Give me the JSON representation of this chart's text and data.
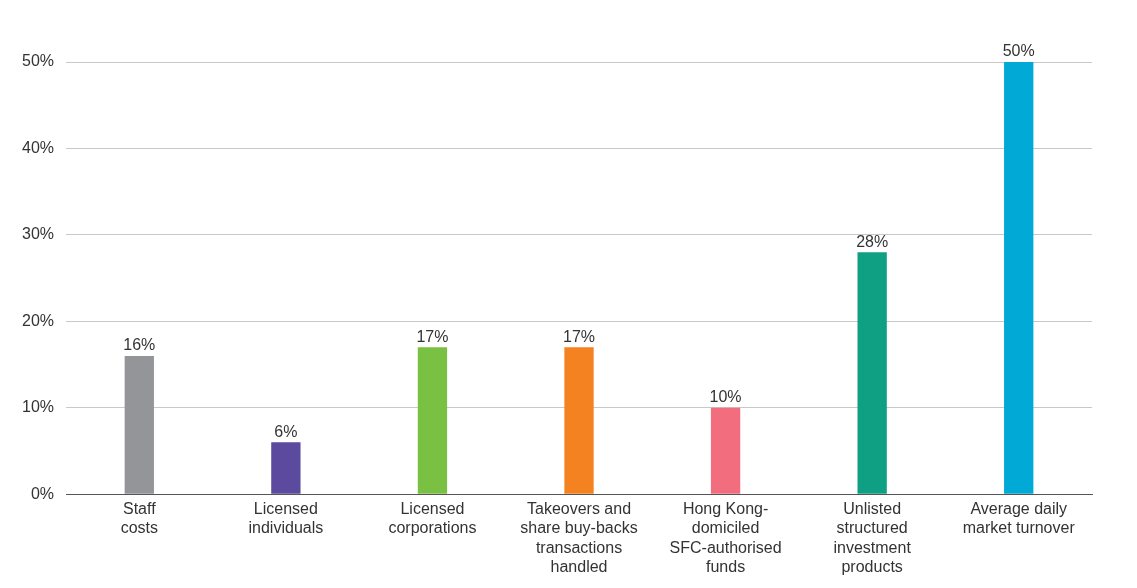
{
  "chart_data": {
    "type": "bar",
    "categories": [
      "Staff\ncosts",
      "Licensed\nindividuals",
      "Licensed\ncorporations",
      "Takeovers and\nshare buy-backs\ntransactions\nhandled",
      "Hong Kong-\ndomiciled\nSFC-authorised\nfunds",
      "Unlisted\nstructured\ninvestment\nproducts",
      "Average daily\nmarket turnover"
    ],
    "values": [
      16,
      6,
      17,
      17,
      10,
      28,
      50
    ],
    "colors": [
      "#939598",
      "#5b4a9e",
      "#7ac143",
      "#f58220",
      "#f26d7d",
      "#0f9f82",
      "#00a9d6"
    ],
    "value_labels": [
      "16%",
      "6%",
      "17%",
      "17%",
      "10%",
      "28%",
      "50%"
    ],
    "ylim": [
      0,
      50
    ],
    "yticks": [
      {
        "value": 0,
        "label": "0%"
      },
      {
        "value": 10,
        "label": "10%"
      },
      {
        "value": 20,
        "label": "20%"
      },
      {
        "value": 30,
        "label": "30%"
      },
      {
        "value": 40,
        "label": "40%"
      },
      {
        "value": 50,
        "label": "50%"
      }
    ],
    "grid": "y",
    "legend": false
  }
}
